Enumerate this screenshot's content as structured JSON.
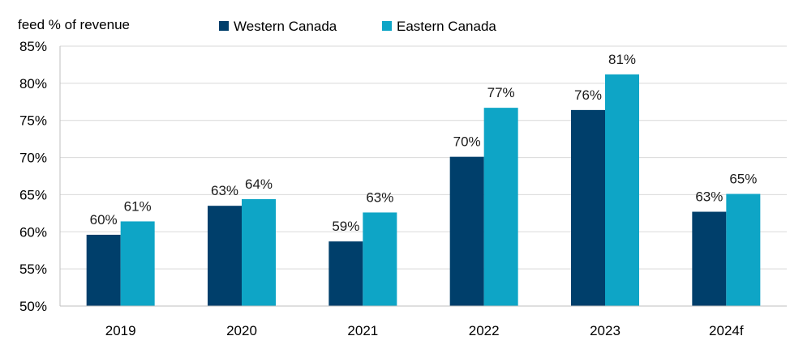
{
  "chart_data": {
    "type": "bar",
    "ylabel": "feed % of revenue",
    "categories": [
      "2019",
      "2020",
      "2021",
      "2022",
      "2023",
      "2024f"
    ],
    "series": [
      {
        "name": "Western Canada",
        "color": "#003f6b",
        "values": [
          59.6,
          63.5,
          58.7,
          70.1,
          76.4,
          62.7
        ],
        "labels": [
          "60%",
          "63%",
          "59%",
          "70%",
          "76%",
          "63%"
        ]
      },
      {
        "name": "Eastern Canada",
        "color": "#0ea5c6",
        "values": [
          61.4,
          64.4,
          62.6,
          76.7,
          81.2,
          65.1
        ],
        "labels": [
          "61%",
          "64%",
          "63%",
          "77%",
          "81%",
          "65%"
        ]
      }
    ],
    "ylim": [
      50,
      85
    ],
    "yticks": [
      50,
      55,
      60,
      65,
      70,
      75,
      80,
      85
    ],
    "ytick_labels": [
      "50%",
      "55%",
      "60%",
      "65%",
      "70%",
      "75%",
      "80%",
      "85%"
    ],
    "grid": true,
    "legend_position": "top-center",
    "gridline_color": "#d9d9d9"
  }
}
